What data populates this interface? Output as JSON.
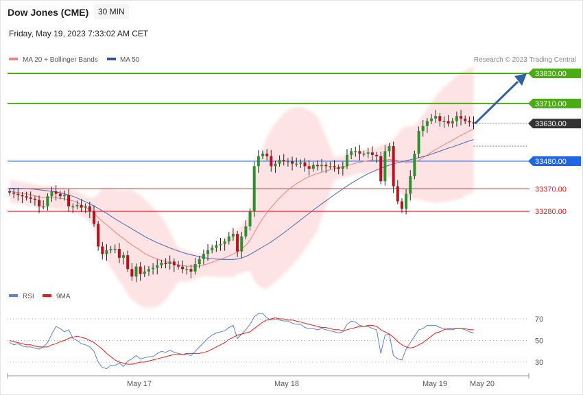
{
  "header": {
    "instrument": "Dow Jones (CME)",
    "timeframe": "30 MIN",
    "timestamp": "Friday, May 19, 2023 7:33:02 AM CET"
  },
  "price_panel": {
    "legend": [
      {
        "label": "MA 20 + Bollinger Bands",
        "color": "#f07f7f"
      },
      {
        "label": "MA 50",
        "color": "#2f5597"
      }
    ],
    "credit": "Research © 2023 Trading Central"
  },
  "rsi_panel": {
    "legend": [
      {
        "label": "RSI",
        "color": "#5b7fd6"
      },
      {
        "label": "9MA",
        "color": "#e31b1b"
      }
    ]
  },
  "chart_data": [
    {
      "type": "candlestick",
      "title": "Dow Jones (CME)",
      "ylim": [
        32900,
        33860
      ],
      "x_labels": [
        "May 17",
        "May 18",
        "May 19",
        "May 20"
      ],
      "levels": [
        {
          "value": 33830,
          "label": "33830.00",
          "color": "#4caa14",
          "kind": "resistance"
        },
        {
          "value": 33710,
          "label": "33710.00",
          "color": "#4caa14",
          "kind": "resistance"
        },
        {
          "value": 33630,
          "label": "33630.00",
          "color": "#333333",
          "kind": "last"
        },
        {
          "value": 33480,
          "label": "33480.00",
          "color": "#1e66e6",
          "kind": "pivot"
        },
        {
          "value": 33370,
          "label": "33370.00",
          "color": "#e31b1b",
          "kind": "support"
        },
        {
          "value": 33280,
          "label": "33280.00",
          "color": "#e31b1b",
          "kind": "support"
        }
      ],
      "closes": [
        33355,
        33350,
        33345,
        33340,
        33335,
        33330,
        33325,
        33300,
        33300,
        33340,
        33360,
        33350,
        33340,
        33345,
        33300,
        33300,
        33305,
        33295,
        33300,
        33280,
        33230,
        33140,
        33110,
        33125,
        33130,
        33130,
        33095,
        33105,
        33050,
        33020,
        33060,
        33030,
        33040,
        33050,
        33055,
        33065,
        33075,
        33070,
        33080,
        33065,
        33060,
        33050,
        33050,
        33040,
        33070,
        33090,
        33110,
        33125,
        33135,
        33145,
        33150,
        33160,
        33180,
        33190,
        33120,
        33180,
        33220,
        33280,
        33460,
        33500,
        33510,
        33500,
        33460,
        33470,
        33485,
        33480,
        33480,
        33470,
        33470,
        33475,
        33460,
        33450,
        33465,
        33460,
        33465,
        33460,
        33460,
        33455,
        33450,
        33460,
        33505,
        33520,
        33520,
        33510,
        33510,
        33515,
        33505,
        33500,
        33400,
        33520,
        33540,
        33380,
        33320,
        33290,
        33350,
        33420,
        33510,
        33600,
        33620,
        33640,
        33650,
        33660,
        33640,
        33640,
        33630,
        33640,
        33660,
        33650,
        33640,
        33635,
        33630
      ],
      "ma20": [
        33360,
        33358,
        33355,
        33352,
        33350,
        33346,
        33342,
        33338,
        33336,
        33337,
        33336,
        33334,
        33332,
        33330,
        33326,
        33322,
        33316,
        33306,
        33296,
        33286,
        33272,
        33255,
        33240,
        33226,
        33212,
        33198,
        33184,
        33172,
        33158,
        33146,
        33136,
        33124,
        33112,
        33104,
        33096,
        33090,
        33084,
        33080,
        33075,
        33071,
        33067,
        33064,
        33062,
        33061,
        33061,
        33062,
        33066,
        33071,
        33077,
        33083,
        33089,
        33095,
        33102,
        33110,
        33118,
        33130,
        33145,
        33165,
        33195,
        33225,
        33252,
        33275,
        33296,
        33315,
        33333,
        33350,
        33365,
        33378,
        33390,
        33400,
        33410,
        33418,
        33425,
        33431,
        33436,
        33441,
        33446,
        33450,
        33454,
        33457,
        33462,
        33467,
        33472,
        33476,
        33479,
        33482,
        33484,
        33485,
        33483,
        33484,
        33487,
        33485,
        33482,
        33478,
        33476,
        33474,
        33476,
        33484,
        33494,
        33505,
        33516,
        33526,
        33536,
        33546,
        33555,
        33564,
        33573,
        33583,
        33592,
        33600,
        33608
      ],
      "ma50": [
        33372,
        33372,
        33371,
        33371,
        33370,
        33369,
        33368,
        33366,
        33364,
        33362,
        33360,
        33357,
        33354,
        33350,
        33345,
        33340,
        33333,
        33326,
        33318,
        33310,
        33301,
        33292,
        33282,
        33272,
        33261,
        33250,
        33240,
        33230,
        33220,
        33210,
        33200,
        33190,
        33180,
        33171,
        33163,
        33155,
        33148,
        33141,
        33134,
        33128,
        33122,
        33116,
        33111,
        33107,
        33103,
        33099,
        33096,
        33093,
        33091,
        33090,
        33089,
        33088,
        33088,
        33088,
        33090,
        33094,
        33100,
        33108,
        33118,
        33128,
        33138,
        33148,
        33158,
        33170,
        33182,
        33194,
        33207,
        33220,
        33233,
        33246,
        33259,
        33272,
        33285,
        33298,
        33310,
        33322,
        33334,
        33346,
        33358,
        33370,
        33381,
        33392,
        33402,
        33412,
        33421,
        33430,
        33438,
        33445,
        33452,
        33458,
        33464,
        33469,
        33474,
        33478,
        33482,
        33486,
        33490,
        33494,
        33498,
        33502,
        33508,
        33514,
        33520,
        33526,
        33532,
        33537,
        33543,
        33549,
        33555,
        33561,
        33566
      ]
    },
    {
      "type": "line",
      "title": "RSI",
      "ylim": [
        20,
        80
      ],
      "y_ticks": [
        70,
        50,
        30
      ],
      "series": [
        {
          "name": "RSI",
          "values": [
            48,
            46,
            47,
            45,
            44,
            44,
            43,
            42,
            44,
            48,
            56,
            63,
            61,
            58,
            60,
            52,
            50,
            47,
            46,
            44,
            40,
            30,
            25,
            24,
            27,
            27,
            29,
            26,
            31,
            33,
            36,
            33,
            34,
            35,
            35,
            38,
            40,
            39,
            41,
            39,
            38,
            37,
            37,
            36,
            40,
            44,
            48,
            52,
            55,
            57,
            58,
            59,
            62,
            64,
            52,
            56,
            60,
            65,
            72,
            75,
            75,
            71,
            69,
            70,
            69,
            68,
            68,
            66,
            65,
            65,
            62,
            61,
            61,
            60,
            61,
            60,
            59,
            58,
            57,
            58,
            65,
            68,
            67,
            64,
            63,
            63,
            61,
            60,
            38,
            55,
            56,
            36,
            33,
            32,
            42,
            48,
            54,
            60,
            61,
            64,
            64,
            64,
            62,
            61,
            60,
            60,
            61,
            61,
            60,
            58,
            57
          ]
        },
        {
          "name": "9MA",
          "values": [
            50,
            49,
            48,
            47,
            46,
            46,
            45,
            44,
            44,
            44,
            46,
            47,
            49,
            50,
            52,
            53,
            54,
            53,
            52,
            50,
            48,
            45,
            42,
            38,
            35,
            32,
            30,
            29,
            28,
            28,
            29,
            30,
            30,
            31,
            32,
            33,
            34,
            35,
            36,
            37,
            37,
            37,
            38,
            38,
            38,
            38,
            39,
            40,
            42,
            44,
            46,
            48,
            51,
            53,
            55,
            56,
            57,
            58,
            61,
            64,
            67,
            69,
            70,
            71,
            70,
            70,
            69,
            69,
            68,
            67,
            66,
            65,
            64,
            63,
            62,
            62,
            61,
            60,
            60,
            59,
            60,
            61,
            62,
            63,
            63,
            64,
            64,
            63,
            60,
            58,
            56,
            53,
            49,
            46,
            44,
            43,
            44,
            46,
            48,
            51,
            54,
            57,
            58,
            60,
            61,
            61,
            61,
            61,
            61,
            60,
            60
          ]
        }
      ]
    }
  ]
}
